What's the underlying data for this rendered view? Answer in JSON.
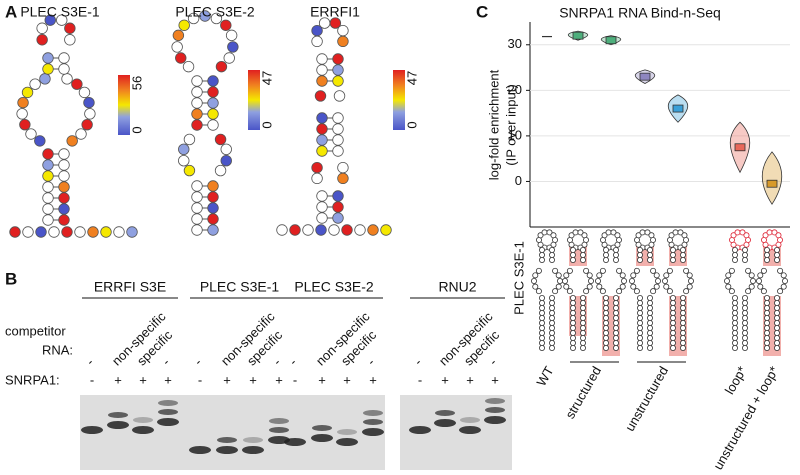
{
  "panel_a": {
    "label": "A",
    "structures": [
      {
        "name": "PLEC S3E-1",
        "scale_max": 56,
        "scale_min": 0
      },
      {
        "name": "PLEC S3E-2",
        "scale_max": 47,
        "scale_min": 0
      },
      {
        "name": "ERRFI1",
        "scale_max": 47,
        "scale_min": 0
      }
    ]
  },
  "panel_b": {
    "label": "B",
    "competitor_label": "competitor",
    "rna_label": "RNA:",
    "snrpa1_label": "SNRPA1:",
    "groups": [
      {
        "name": "ERRFI S3E",
        "competitor": [
          "-",
          "non-specific",
          "specific",
          "-"
        ],
        "snrpa1": [
          "-",
          "+",
          "+",
          "+"
        ]
      },
      {
        "name": "PLEC S3E-1",
        "competitor": [
          "-",
          "non-specific",
          "specific",
          "-"
        ],
        "snrpa1": [
          "-",
          "+",
          "+",
          "+"
        ]
      },
      {
        "name": "PLEC S3E-2",
        "competitor": [
          "-",
          "non-specific",
          "specific",
          "-"
        ],
        "snrpa1": [
          "-",
          "+",
          "+",
          "+"
        ]
      },
      {
        "name": "RNU2",
        "competitor": [
          "-",
          "non-specific",
          "specific",
          "-"
        ],
        "snrpa1": [
          "-",
          "+",
          "+",
          "+"
        ]
      }
    ]
  },
  "chart_data": {
    "type": "violin",
    "panel_label": "C",
    "title": "SNRPA1 RNA Bind-n-Seq",
    "ylabel": [
      "log-fold enrichment",
      "(IP over input)"
    ],
    "structure_label": "PLEC S3E-1",
    "categories": [
      "WT",
      "structured",
      null,
      "unstructured",
      null,
      "loop*",
      "unstructured + loop*"
    ],
    "values": [
      31.8,
      32,
      31,
      23,
      16,
      7.5,
      -0.5
    ],
    "lows": [
      31.8,
      31,
      30,
      21.5,
      13,
      2,
      -5
    ],
    "highs": [
      31.8,
      33,
      32,
      24.5,
      19,
      13,
      6.5
    ],
    "colors": [
      "#777777",
      "#4daf7c",
      "#4daf7c",
      "#8e86c0",
      "#3aa0d8",
      "#e8685a",
      "#d89a2a"
    ],
    "ylim": [
      -10,
      35
    ],
    "yticks": [
      0,
      10,
      20,
      30
    ],
    "grid": true
  }
}
